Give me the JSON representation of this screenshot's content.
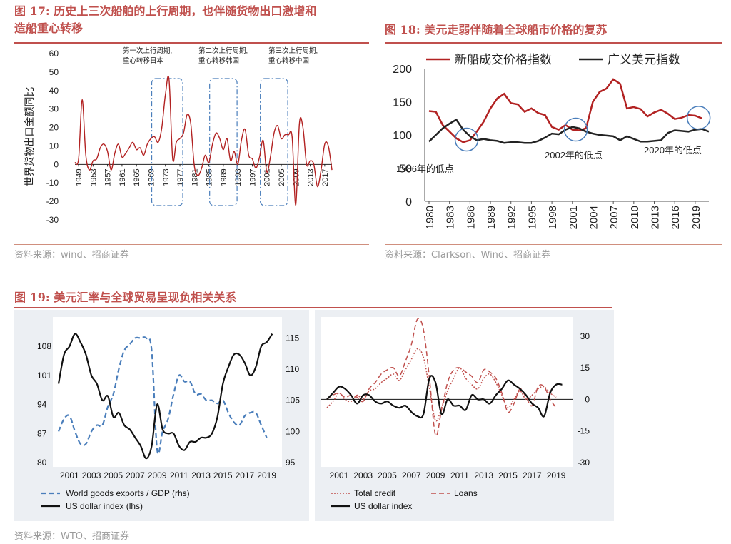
{
  "colors": {
    "accent": "#c0504d",
    "dark_red": "#b22222",
    "black": "#222222",
    "blue": "#4a7ebb",
    "dashed_red": "#c0504d",
    "panel_bg": "#eceff3"
  },
  "fig17": {
    "title": "图 17:  历史上三次船舶的上行周期，也伴随货物出口激增和造船重心转移",
    "title_line1": "图 17:  历史上三次船舶的上行周期，也伴随货物出口激增和",
    "title_line2": "造船重心转移",
    "source": "资料来源：wind、招商证券"
  },
  "fig18": {
    "title": "图 18:  美元走弱伴随着全球船市价格的复苏",
    "source": "资料来源：Clarkson、Wind、招商证券"
  },
  "fig19": {
    "title": "图 19:  美元汇率与全球贸易呈现负相关关系",
    "source": "资料来源：WTO、招商证券"
  },
  "chart_data": [
    {
      "id": "fig17",
      "type": "line",
      "ylabel": "世界货物出口金额同比",
      "ylim": [
        -30,
        60
      ],
      "yticks": [
        60,
        50,
        40,
        30,
        20,
        10,
        0,
        -10,
        -20,
        -30
      ],
      "xticks": [
        "1949",
        "1953",
        "1957",
        "1961",
        "1965",
        "1969",
        "1973",
        "1977",
        "1981",
        "1985",
        "1989",
        "1993",
        "1997",
        "2001",
        "2005",
        "2009",
        "2013",
        "2017"
      ],
      "x_range": [
        1949,
        2019
      ],
      "annotations": [
        {
          "line1": "第一次上行周期,",
          "line2": "重心转移日本",
          "box": [
            1970,
            1977
          ]
        },
        {
          "line1": "第二次上行周期,",
          "line2": "重心转移韩国",
          "box": [
            1986,
            1992
          ]
        },
        {
          "line1": "第三次上行周期,",
          "line2": "重心转移中国",
          "box": [
            2000,
            2006
          ]
        }
      ],
      "series": [
        {
          "name": "世界货物出口金额同比",
          "x": [
            1948,
            1949,
            1950,
            1951,
            1952,
            1953,
            1954,
            1955,
            1956,
            1957,
            1958,
            1959,
            1960,
            1961,
            1962,
            1963,
            1964,
            1965,
            1966,
            1967,
            1968,
            1969,
            1970,
            1971,
            1972,
            1973,
            1974,
            1975,
            1976,
            1977,
            1978,
            1979,
            1980,
            1981,
            1982,
            1983,
            1984,
            1985,
            1986,
            1987,
            1988,
            1989,
            1990,
            1991,
            1992,
            1993,
            1994,
            1995,
            1996,
            1997,
            1998,
            1999,
            2000,
            2001,
            2002,
            2003,
            2004,
            2005,
            2006,
            2007,
            2008,
            2009,
            2010,
            2011,
            2012,
            2013,
            2014,
            2015,
            2016,
            2017,
            2018,
            2019
          ],
          "values": [
            1,
            3,
            35,
            5,
            -3,
            2,
            3,
            9,
            11,
            7,
            -3,
            6,
            11,
            4,
            6,
            9,
            12,
            8,
            9,
            5,
            11,
            14,
            15,
            12,
            20,
            38,
            46,
            3,
            12,
            14,
            17,
            27,
            22,
            -1,
            -6,
            -2,
            5,
            1,
            11,
            17,
            14,
            8,
            14,
            2,
            7,
            0,
            13,
            19,
            5,
            3,
            -2,
            4,
            13,
            -4,
            4,
            17,
            21,
            14,
            16,
            16,
            15,
            -22,
            22,
            20,
            0,
            2,
            0,
            -12,
            -3,
            11,
            10,
            -3
          ]
        }
      ]
    },
    {
      "id": "fig18",
      "type": "line",
      "ylim": [
        0,
        200
      ],
      "yticks": [
        200,
        150,
        100,
        50,
        0
      ],
      "xticks": [
        "1980",
        "1983",
        "1986",
        "1989",
        "1992",
        "1995",
        "1998",
        "2001",
        "2004",
        "2007",
        "2010",
        "2013",
        "2016",
        "2019"
      ],
      "x_range": [
        1980,
        2021
      ],
      "legend": [
        "新船成交价格指数",
        "广义美元指数"
      ],
      "annotations": [
        {
          "text": "1986年的低点",
          "x": 1985.5,
          "y": 93
        },
        {
          "text": "2002年的低点",
          "x": 2001.5,
          "y": 108
        },
        {
          "text": "2020年的低点",
          "x": 2019.5,
          "y": 126
        }
      ],
      "series": [
        {
          "name": "新船成交价格指数",
          "color": "#b22222",
          "x": [
            1980,
            1981,
            1982,
            1983,
            1984,
            1985,
            1986,
            1987,
            1988,
            1989,
            1990,
            1991,
            1992,
            1993,
            1994,
            1995,
            1996,
            1997,
            1998,
            1999,
            2000,
            2001,
            2002,
            2003,
            2004,
            2005,
            2006,
            2007,
            2008,
            2009,
            2010,
            2011,
            2012,
            2013,
            2014,
            2015,
            2016,
            2017,
            2018,
            2019,
            2020
          ],
          "values": [
            136,
            135,
            115,
            105,
            95,
            89,
            92,
            105,
            120,
            140,
            155,
            162,
            148,
            146,
            135,
            140,
            133,
            130,
            112,
            108,
            115,
            108,
            107,
            110,
            150,
            165,
            170,
            184,
            177,
            140,
            142,
            139,
            128,
            134,
            138,
            132,
            124,
            126,
            130,
            129,
            125
          ]
        },
        {
          "name": "广义美元指数",
          "color": "#222222",
          "x": [
            1980,
            1981,
            1982,
            1983,
            1984,
            1985,
            1986,
            1987,
            1988,
            1989,
            1990,
            1991,
            1992,
            1993,
            1994,
            1995,
            1996,
            1997,
            1998,
            1999,
            2000,
            2001,
            2002,
            2003,
            2004,
            2005,
            2006,
            2007,
            2008,
            2009,
            2010,
            2011,
            2012,
            2013,
            2014,
            2015,
            2016,
            2017,
            2018,
            2019,
            2020,
            2021
          ],
          "values": [
            90,
            100,
            110,
            117,
            123,
            108,
            98,
            92,
            94,
            92,
            91,
            88,
            89,
            89,
            88,
            88,
            91,
            96,
            102,
            101,
            108,
            112,
            110,
            105,
            102,
            100,
            99,
            98,
            92,
            98,
            94,
            90,
            90,
            91,
            92,
            103,
            107,
            106,
            105,
            108,
            109,
            105
          ]
        }
      ]
    },
    {
      "id": "fig19-left",
      "type": "line",
      "ylim_lhs": [
        80,
        113
      ],
      "ylim_rhs": [
        95,
        117
      ],
      "yticks_lhs": [
        108,
        101,
        94,
        87,
        80
      ],
      "yticks_rhs": [
        115,
        110,
        105,
        100,
        95
      ],
      "xticks": [
        "2001",
        "2003",
        "2005",
        "2007",
        "2009",
        "2011",
        "2013",
        "2015",
        "2017",
        "2019"
      ],
      "x_range": [
        2000,
        2020
      ],
      "legend": [
        "World goods exports / GDP (rhs)",
        "US dollar index (lhs)"
      ],
      "series": [
        {
          "name": "World goods exports / GDP (rhs)",
          "axis": "rhs",
          "style": "dashed",
          "color": "#4a7ebb",
          "x": [
            2000.0,
            2000.5,
            2001.0,
            2001.5,
            2002.0,
            2002.5,
            2003.0,
            2003.5,
            2004.0,
            2004.5,
            2005.0,
            2005.5,
            2006.0,
            2006.5,
            2007.0,
            2007.5,
            2008.0,
            2008.5,
            2009.0,
            2009.5,
            2010.0,
            2010.5,
            2011.0,
            2011.5,
            2012.0,
            2012.5,
            2013.0,
            2013.5,
            2014.0,
            2014.5,
            2015.0,
            2015.5,
            2016.0,
            2016.5,
            2017.0,
            2017.5,
            2018.0,
            2018.5,
            2019.0
          ],
          "values": [
            100,
            102,
            102.5,
            100,
            98,
            98,
            100,
            101,
            101,
            104,
            106,
            110,
            113,
            114,
            115,
            115,
            115,
            113,
            97,
            100,
            102,
            106,
            109,
            108,
            108,
            106,
            106,
            105,
            105,
            104.5,
            105,
            103,
            101.5,
            101,
            102.5,
            103,
            103,
            101,
            99
          ]
        },
        {
          "name": "US dollar index (lhs)",
          "axis": "lhs",
          "style": "solid",
          "color": "#111111",
          "x": [
            2000.0,
            2000.5,
            2001.0,
            2001.5,
            2002.0,
            2002.5,
            2003.0,
            2003.5,
            2004.0,
            2004.5,
            2005.0,
            2005.5,
            2006.0,
            2006.5,
            2007.0,
            2007.5,
            2008.0,
            2008.5,
            2009.0,
            2009.5,
            2010.0,
            2010.5,
            2011.0,
            2011.5,
            2012.0,
            2012.5,
            2013.0,
            2013.5,
            2014.0,
            2014.5,
            2015.0,
            2015.5,
            2016.0,
            2016.5,
            2017.0,
            2017.5,
            2018.0,
            2018.5,
            2019.0,
            2019.5
          ],
          "values": [
            99,
            106,
            108,
            111,
            109,
            106,
            101,
            99,
            95,
            96,
            91,
            92,
            89,
            88,
            86,
            84,
            81,
            84,
            94,
            88,
            87,
            87,
            84,
            83,
            85,
            85,
            86,
            86,
            87,
            91,
            99,
            103,
            106,
            106,
            104,
            101,
            103,
            108,
            109,
            111
          ]
        }
      ]
    },
    {
      "id": "fig19-right",
      "type": "line",
      "ylim": [
        -30,
        35
      ],
      "yticks": [
        30,
        15,
        0,
        -15,
        -30
      ],
      "xticks": [
        "2001",
        "2003",
        "2005",
        "2007",
        "2009",
        "2011",
        "2013",
        "2015",
        "2017",
        "2019"
      ],
      "x_range": [
        2000,
        2020
      ],
      "legend": [
        "Total credit",
        "Loans",
        "US dollar index"
      ],
      "series": [
        {
          "name": "Total credit",
          "style": "dotted",
          "color": "#c0504d",
          "x": [
            2000.0,
            2000.5,
            2001.0,
            2001.5,
            2002.0,
            2002.5,
            2003.0,
            2003.5,
            2004.0,
            2004.5,
            2005.0,
            2005.5,
            2006.0,
            2006.5,
            2007.0,
            2007.5,
            2008.0,
            2008.5,
            2009.0,
            2009.5,
            2010.0,
            2010.5,
            2011.0,
            2011.5,
            2012.0,
            2012.5,
            2013.0,
            2013.5,
            2014.0,
            2014.5,
            2015.0,
            2015.5,
            2016.0,
            2016.5,
            2017.0,
            2017.5,
            2018.0,
            2018.5,
            2019.0
          ],
          "values": [
            -4,
            -1,
            3,
            0,
            -1,
            2,
            0,
            4,
            5,
            8,
            10,
            12,
            9,
            14,
            19,
            24,
            20,
            5,
            -10,
            -4,
            4,
            10,
            15,
            10,
            7,
            5,
            10,
            12,
            8,
            2,
            -4,
            0,
            4,
            0,
            2,
            5,
            6,
            3,
            1
          ]
        },
        {
          "name": "Loans",
          "style": "dashed",
          "color": "#c0504d",
          "x": [
            2000.0,
            2000.5,
            2001.0,
            2001.5,
            2002.0,
            2002.5,
            2003.0,
            2003.5,
            2004.0,
            2004.5,
            2005.0,
            2005.5,
            2006.0,
            2006.5,
            2007.0,
            2007.5,
            2008.0,
            2008.5,
            2009.0,
            2009.5,
            2010.0,
            2010.5,
            2011.0,
            2011.5,
            2012.0,
            2012.5,
            2013.0,
            2013.5,
            2014.0,
            2014.5,
            2015.0,
            2015.5,
            2016.0,
            2016.5,
            2017.0,
            2017.5,
            2018.0,
            2018.5,
            2019.0
          ],
          "values": [
            0,
            2,
            3,
            1,
            2,
            1,
            -1,
            5,
            8,
            12,
            14,
            15,
            11,
            18,
            26,
            38,
            33,
            10,
            -17,
            -5,
            8,
            14,
            15,
            13,
            11,
            8,
            14,
            13,
            10,
            3,
            -6,
            -2,
            5,
            1,
            -3,
            6,
            6,
            0,
            -4
          ]
        },
        {
          "name": "US dollar index",
          "style": "solid",
          "color": "#111111",
          "x": [
            2000.0,
            2000.5,
            2001.0,
            2001.5,
            2002.0,
            2002.5,
            2003.0,
            2003.5,
            2004.0,
            2004.5,
            2005.0,
            2005.5,
            2006.0,
            2006.5,
            2007.0,
            2007.5,
            2008.0,
            2008.5,
            2009.0,
            2009.5,
            2010.0,
            2010.5,
            2011.0,
            2011.5,
            2012.0,
            2012.5,
            2013.0,
            2013.5,
            2014.0,
            2014.5,
            2015.0,
            2015.5,
            2016.0,
            2016.5,
            2017.0,
            2017.5,
            2018.0,
            2018.5,
            2019.0,
            2019.5
          ],
          "values": [
            0,
            3,
            6,
            5,
            2,
            -2,
            2,
            2,
            -1,
            -2,
            -1,
            -3,
            -4,
            -3,
            -6,
            -8,
            -7,
            10,
            8,
            -7,
            0,
            -3,
            -3,
            -5,
            2,
            0,
            0,
            -2,
            2,
            5,
            9,
            7,
            5,
            2,
            -2,
            -4,
            -8,
            3,
            7,
            7
          ]
        }
      ]
    }
  ]
}
